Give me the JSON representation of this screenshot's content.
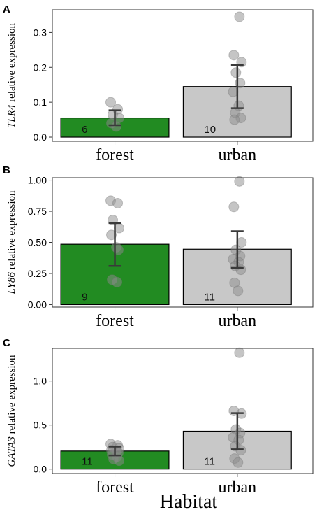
{
  "chart_data": [
    {
      "type": "bar",
      "panel": "A",
      "gene": "TLR4",
      "ylabel_suffix": " relative expression",
      "categories": [
        "forest",
        "urban"
      ],
      "values": [
        0.055,
        0.145
      ],
      "error_low": [
        0.034,
        0.083
      ],
      "error_high": [
        0.077,
        0.207
      ],
      "n": [
        "6",
        "10"
      ],
      "points": [
        [
          0.1,
          0.08,
          0.065,
          0.055,
          0.04,
          0.03
        ],
        [
          0.345,
          0.235,
          0.215,
          0.185,
          0.155,
          0.13,
          0.09,
          0.07,
          0.055,
          0.05
        ]
      ],
      "ylim": [
        -0.012,
        0.365
      ],
      "yticks": [
        0.0,
        0.1,
        0.2,
        0.3
      ],
      "ytick_labels": [
        "0.0",
        "0.1",
        "0.2",
        "0.3"
      ]
    },
    {
      "type": "bar",
      "panel": "B",
      "gene": "LY86",
      "ylabel_suffix": " relative expression",
      "categories": [
        "forest",
        "urban"
      ],
      "values": [
        0.485,
        0.445
      ],
      "error_low": [
        0.31,
        0.295
      ],
      "error_high": [
        0.655,
        0.59
      ],
      "n": [
        "9",
        "11"
      ],
      "points": [
        [
          0.835,
          0.815,
          0.68,
          0.615,
          0.56,
          0.46,
          0.44,
          0.2,
          0.18
        ],
        [
          0.99,
          0.785,
          0.5,
          0.44,
          0.39,
          0.365,
          0.34,
          0.31,
          0.28,
          0.175,
          0.11
        ]
      ],
      "ylim": [
        -0.02,
        1.02
      ],
      "yticks": [
        0.0,
        0.25,
        0.5,
        0.75,
        1.0
      ],
      "ytick_labels": [
        "0.00",
        "0.25",
        "0.50",
        "0.75",
        "1.00"
      ]
    },
    {
      "type": "bar",
      "panel": "C",
      "gene": "GATA3",
      "ylabel_suffix": " relative expression",
      "categories": [
        "forest",
        "urban"
      ],
      "values": [
        0.205,
        0.43
      ],
      "error_low": [
        0.155,
        0.225
      ],
      "error_high": [
        0.255,
        0.635
      ],
      "n": [
        "11",
        "11"
      ],
      "points": [
        [
          0.285,
          0.27,
          0.25,
          0.235,
          0.215,
          0.2,
          0.185,
          0.165,
          0.14,
          0.115,
          0.095
        ],
        [
          1.32,
          0.66,
          0.63,
          0.45,
          0.41,
          0.36,
          0.33,
          0.26,
          0.215,
          0.12,
          0.075
        ]
      ],
      "ylim": [
        -0.05,
        1.37
      ],
      "yticks": [
        0.0,
        0.5,
        1.0
      ],
      "ytick_labels": [
        "0.0",
        "0.5",
        "1.0"
      ]
    }
  ],
  "xaxis_title": "Habitat",
  "colors": {
    "forest": "#228B22",
    "urban": "#C8C8C8",
    "points": "#8c8c8c",
    "errorbar": "#3a3a3a"
  }
}
